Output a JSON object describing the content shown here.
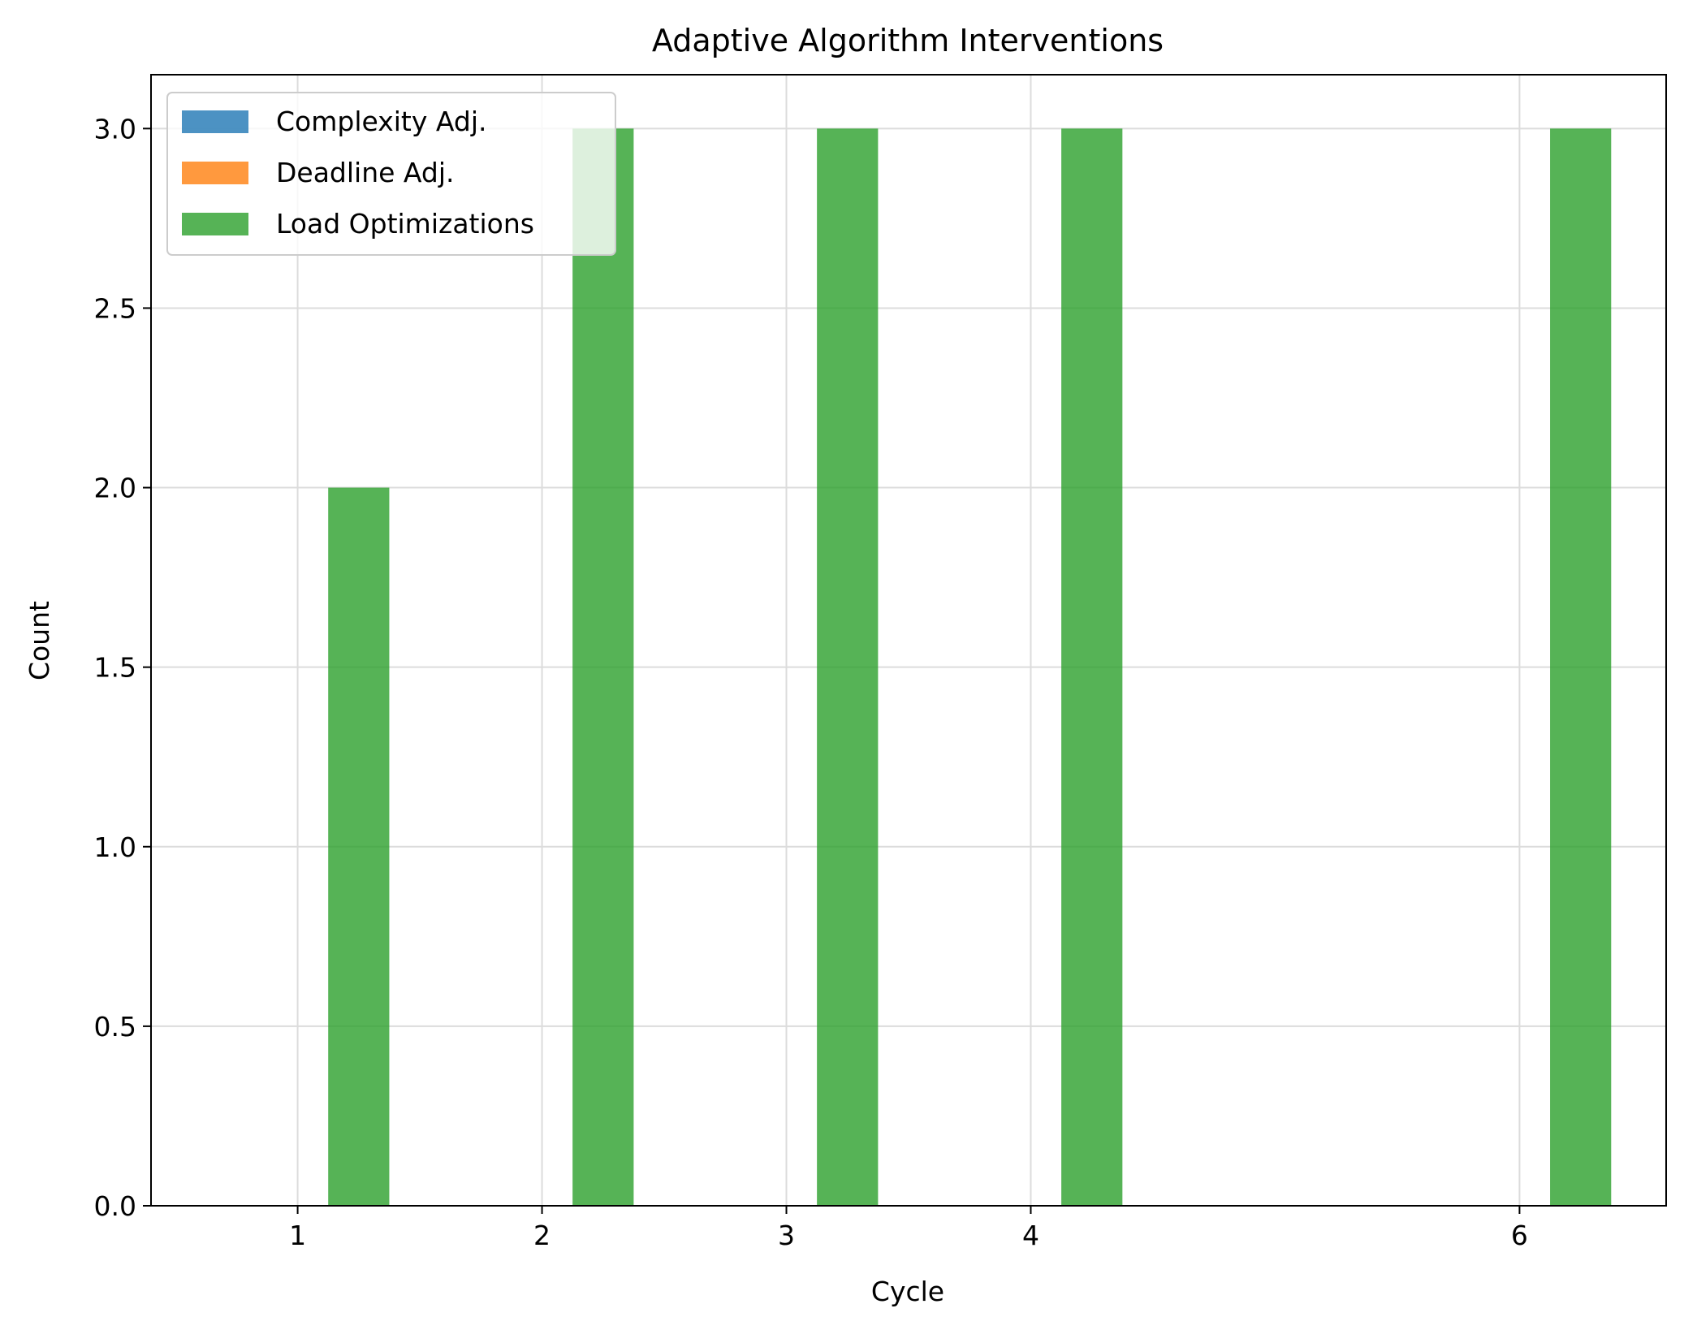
{
  "chart_data": {
    "type": "bar",
    "title": "Adaptive Algorithm Interventions",
    "xlabel": "Cycle",
    "ylabel": "Count",
    "x": [
      1,
      2,
      3,
      4,
      6
    ],
    "x_tick_labels": [
      "1",
      "2",
      "3",
      "4",
      "6"
    ],
    "xlim": [
      0.4,
      6.6
    ],
    "ylim": [
      0,
      3.15
    ],
    "y_ticks": [
      0.0,
      0.5,
      1.0,
      1.5,
      2.0,
      2.5,
      3.0
    ],
    "y_tick_labels": [
      "0.0",
      "0.5",
      "1.0",
      "1.5",
      "2.0",
      "2.5",
      "3.0"
    ],
    "grid": true,
    "legend_position": "top-left",
    "series": [
      {
        "name": "Complexity Adj.",
        "color": "#1f77b4",
        "values": [
          0,
          0,
          0,
          0,
          0
        ]
      },
      {
        "name": "Deadline Adj.",
        "color": "#ff7f0e",
        "values": [
          0,
          0,
          0,
          0,
          0
        ]
      },
      {
        "name": "Load Optimizations",
        "color": "#2ca02c",
        "values": [
          2,
          3,
          3,
          3,
          3
        ]
      }
    ]
  }
}
